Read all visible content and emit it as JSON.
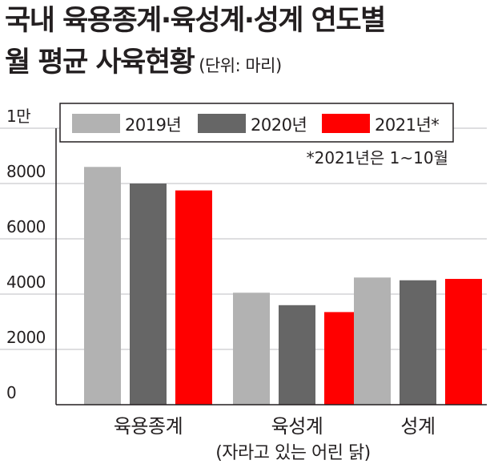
{
  "chart_data": {
    "type": "bar",
    "title": "국내 육용종계·육성계·성계 연도별",
    "subtitle": "월 평균 사육현황",
    "unit_label": "(단위: 마리)",
    "y_axis": {
      "ticks": [
        {
          "value": 0,
          "label": "0"
        },
        {
          "value": 2000,
          "label": "2000"
        },
        {
          "value": 4000,
          "label": "4000"
        },
        {
          "value": 6000,
          "label": "6000"
        },
        {
          "value": 8000,
          "label": "8000"
        },
        {
          "value": 10000,
          "label": "1만"
        }
      ],
      "ylim": [
        0,
        10000
      ]
    },
    "grid": true,
    "categories": [
      {
        "label": "육용종계",
        "sublabel": ""
      },
      {
        "label": "육성계",
        "sublabel": "(자라고 있는 어린 닭)"
      },
      {
        "label": "성계",
        "sublabel": ""
      }
    ],
    "series": [
      {
        "name": "2019년",
        "color": "#b2b2b2",
        "values": [
          8600,
          4050,
          4600
        ]
      },
      {
        "name": "2020년",
        "color": "#666666",
        "values": [
          8000,
          3600,
          4500
        ]
      },
      {
        "name": "2021년*",
        "color": "#ff0000",
        "values": [
          7750,
          3350,
          4550
        ]
      }
    ],
    "legend_position": "top",
    "footnote": "*2021년은 1~10월"
  }
}
